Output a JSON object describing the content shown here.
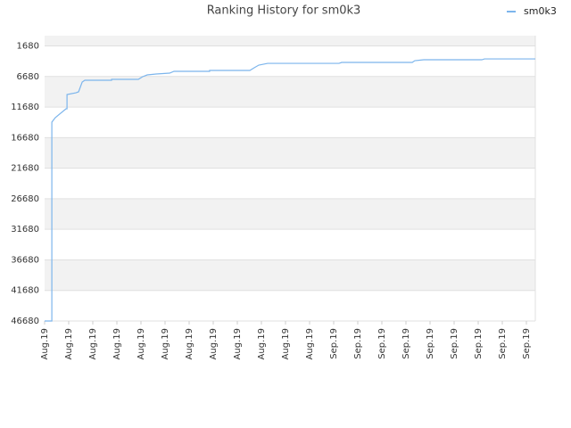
{
  "chart_data": {
    "type": "line",
    "title": "Ranking History for sm0k3",
    "x": [
      0,
      0.3,
      0.3,
      0.44,
      0.89,
      0.93,
      0.93,
      1.3,
      1.41,
      1.56,
      1.67,
      2.78,
      2.78,
      3.89,
      4.07,
      4.26,
      4.63,
      5.19,
      5.37,
      6.85,
      6.85,
      8.52,
      8.7,
      8.89,
      9.26,
      12.22,
      12.33,
      15.26,
      15.37,
      15.74,
      18.15,
      18.26,
      20.37
    ],
    "series": [
      {
        "name": "sm0k3",
        "color": "#7cb5ec",
        "values": [
          46680,
          46680,
          14150,
          13420,
          11960,
          11960,
          9630,
          9340,
          9190,
          7590,
          7290,
          7290,
          7150,
          7150,
          6710,
          6420,
          6270,
          6130,
          5830,
          5830,
          5690,
          5690,
          5250,
          4820,
          4530,
          4530,
          4380,
          4380,
          4090,
          3940,
          3940,
          3800,
          3800
        ]
      }
    ],
    "xlim": [
      0,
      20.37
    ],
    "xticks": [
      {
        "value": 0,
        "label": "Aug.19"
      },
      {
        "value": 1,
        "label": "Aug.19"
      },
      {
        "value": 2,
        "label": "Aug.19"
      },
      {
        "value": 3,
        "label": "Aug.19"
      },
      {
        "value": 4,
        "label": "Aug.19"
      },
      {
        "value": 5,
        "label": "Aug.19"
      },
      {
        "value": 6,
        "label": "Aug.19"
      },
      {
        "value": 7,
        "label": "Aug.19"
      },
      {
        "value": 8,
        "label": "Aug.19"
      },
      {
        "value": 9,
        "label": "Aug.19"
      },
      {
        "value": 10,
        "label": "Aug.19"
      },
      {
        "value": 11,
        "label": "Aug.19"
      },
      {
        "value": 12,
        "label": "Sep.19"
      },
      {
        "value": 13,
        "label": "Sep.19"
      },
      {
        "value": 14,
        "label": "Sep.19"
      },
      {
        "value": 15,
        "label": "Sep.19"
      },
      {
        "value": 16,
        "label": "Sep.19"
      },
      {
        "value": 17,
        "label": "Sep.19"
      },
      {
        "value": 18,
        "label": "Sep.19"
      },
      {
        "value": 19,
        "label": "Sep.19"
      },
      {
        "value": 20,
        "label": "Sep.19"
      }
    ],
    "ylim": [
      46680,
      0
    ],
    "yticks": [
      1680,
      6680,
      11680,
      16680,
      21680,
      26680,
      31680,
      36680,
      41680,
      46680
    ],
    "grid": true,
    "legend": "top-right"
  }
}
